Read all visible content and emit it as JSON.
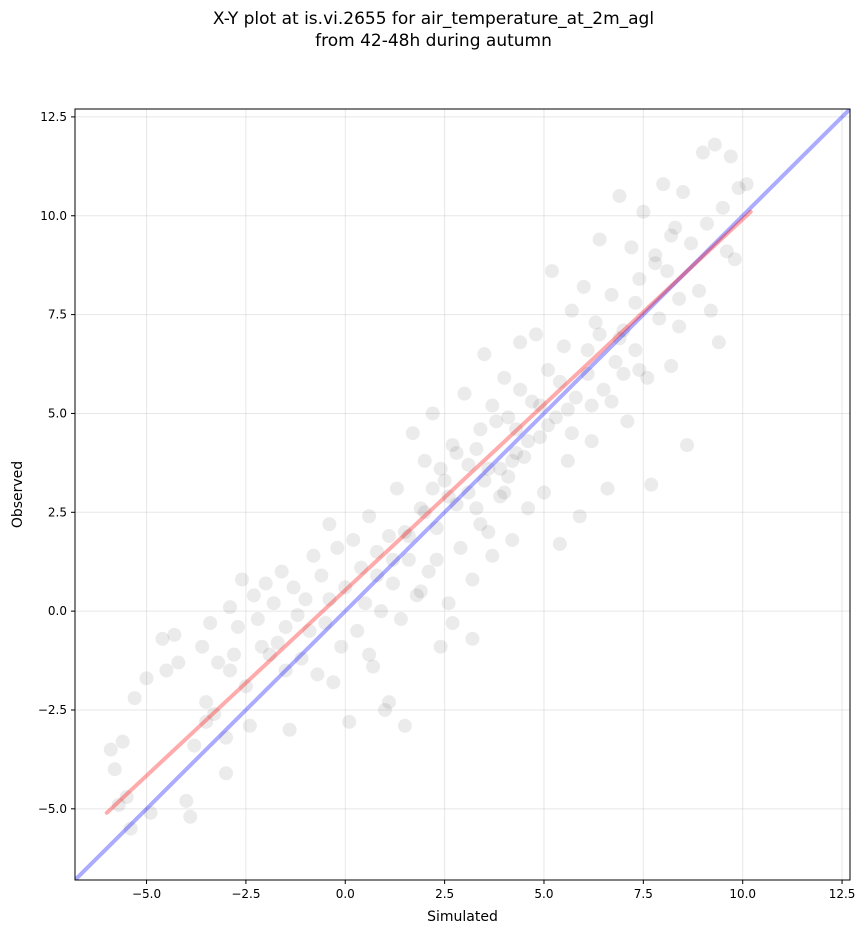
{
  "chart_data": {
    "type": "scatter",
    "title": "X-Y plot at is.vi.2655 for air_temperature_at_2m_agl",
    "subtitle": "from 42-48h during autumn",
    "xlabel": "Simulated",
    "ylabel": "Observed",
    "xlim": [
      -6.8,
      12.7
    ],
    "ylim": [
      -6.8,
      12.7
    ],
    "x_ticks": [
      -5.0,
      -2.5,
      0.0,
      2.5,
      5.0,
      7.5,
      10.0,
      12.5
    ],
    "y_ticks": [
      -5.0,
      -2.5,
      0.0,
      2.5,
      5.0,
      7.5,
      10.0,
      12.5
    ],
    "x_tick_labels": [
      "−5.0",
      "−2.5",
      "0.0",
      "2.5",
      "5.0",
      "7.5",
      "10.0",
      "12.5"
    ],
    "y_tick_labels": [
      "−5.0",
      "−2.5",
      "0.0",
      "2.5",
      "5.0",
      "7.5",
      "10.0",
      "12.5"
    ],
    "grid": true,
    "point_color": "#000000",
    "identity_line": {
      "color": "#0000ff",
      "from": [
        -6.8,
        -6.8
      ],
      "to": [
        12.7,
        12.7
      ]
    },
    "regression_line": {
      "color": "#ff0000",
      "from": [
        -6.0,
        -5.1
      ],
      "to": [
        10.2,
        10.1
      ]
    },
    "points": [
      [
        -5.9,
        -3.5
      ],
      [
        -5.8,
        -4.0
      ],
      [
        -5.7,
        -4.9
      ],
      [
        -5.6,
        -3.3
      ],
      [
        -5.5,
        -4.7
      ],
      [
        -5.4,
        -5.5
      ],
      [
        -5.3,
        -2.2
      ],
      [
        -5.0,
        -1.7
      ],
      [
        -4.9,
        -5.1
      ],
      [
        -4.6,
        -0.7
      ],
      [
        -4.5,
        -1.5
      ],
      [
        -4.3,
        -0.6
      ],
      [
        -4.2,
        -1.3
      ],
      [
        -4.0,
        -4.8
      ],
      [
        -3.9,
        -5.2
      ],
      [
        -3.8,
        -3.4
      ],
      [
        -3.6,
        -0.9
      ],
      [
        -3.5,
        -2.8
      ],
      [
        -3.4,
        -0.3
      ],
      [
        -3.3,
        -2.6
      ],
      [
        -3.2,
        -1.3
      ],
      [
        -3.0,
        -4.1
      ],
      [
        -3.0,
        -3.2
      ],
      [
        -2.9,
        0.1
      ],
      [
        -2.8,
        -1.1
      ],
      [
        -2.7,
        -0.4
      ],
      [
        -2.6,
        0.8
      ],
      [
        -2.5,
        -1.9
      ],
      [
        -2.4,
        -2.9
      ],
      [
        -2.3,
        0.4
      ],
      [
        -2.2,
        -0.2
      ],
      [
        -2.0,
        0.7
      ],
      [
        -1.9,
        -1.1
      ],
      [
        -1.8,
        0.2
      ],
      [
        -1.7,
        -0.8
      ],
      [
        -1.6,
        1.0
      ],
      [
        -1.5,
        -1.5
      ],
      [
        -1.4,
        -3.0
      ],
      [
        -1.3,
        0.6
      ],
      [
        -1.2,
        -0.1
      ],
      [
        -1.1,
        -1.2
      ],
      [
        -1.0,
        0.3
      ],
      [
        -0.9,
        -0.5
      ],
      [
        -0.8,
        1.4
      ],
      [
        -0.7,
        -1.6
      ],
      [
        -0.6,
        0.9
      ],
      [
        -0.5,
        -0.3
      ],
      [
        -0.4,
        2.2
      ],
      [
        -0.3,
        -1.8
      ],
      [
        -0.2,
        1.6
      ],
      [
        -0.1,
        -0.9
      ],
      [
        0.0,
        0.6
      ],
      [
        0.1,
        -2.8
      ],
      [
        0.2,
        1.8
      ],
      [
        0.3,
        -0.5
      ],
      [
        0.4,
        1.1
      ],
      [
        0.5,
        0.2
      ],
      [
        0.6,
        2.4
      ],
      [
        0.7,
        -1.4
      ],
      [
        0.8,
        1.5
      ],
      [
        0.9,
        0.0
      ],
      [
        1.0,
        -2.5
      ],
      [
        1.1,
        1.9
      ],
      [
        1.2,
        0.7
      ],
      [
        1.3,
        3.1
      ],
      [
        1.4,
        -0.2
      ],
      [
        1.5,
        2.0
      ],
      [
        1.6,
        1.3
      ],
      [
        1.7,
        4.5
      ],
      [
        1.8,
        0.4
      ],
      [
        1.9,
        2.6
      ],
      [
        2.0,
        3.8
      ],
      [
        2.1,
        1.0
      ],
      [
        2.2,
        5.0
      ],
      [
        2.3,
        2.1
      ],
      [
        2.4,
        -0.9
      ],
      [
        2.5,
        3.3
      ],
      [
        2.6,
        0.2
      ],
      [
        2.7,
        4.2
      ],
      [
        2.8,
        2.7
      ],
      [
        2.9,
        1.6
      ],
      [
        3.0,
        5.5
      ],
      [
        3.1,
        3.0
      ],
      [
        3.2,
        -0.7
      ],
      [
        3.3,
        4.1
      ],
      [
        3.4,
        2.2
      ],
      [
        3.5,
        6.5
      ],
      [
        3.6,
        3.6
      ],
      [
        3.7,
        1.4
      ],
      [
        3.8,
        4.8
      ],
      [
        3.9,
        2.9
      ],
      [
        4.0,
        5.9
      ],
      [
        4.1,
        3.4
      ],
      [
        4.2,
        1.8
      ],
      [
        4.3,
        4.6
      ],
      [
        4.4,
        6.8
      ],
      [
        4.5,
        3.9
      ],
      [
        4.6,
        2.6
      ],
      [
        4.7,
        5.3
      ],
      [
        4.8,
        7.0
      ],
      [
        4.9,
        4.4
      ],
      [
        5.0,
        3.0
      ],
      [
        5.1,
        6.1
      ],
      [
        5.2,
        8.6
      ],
      [
        5.3,
        4.9
      ],
      [
        5.4,
        1.7
      ],
      [
        5.5,
        6.7
      ],
      [
        5.6,
        3.8
      ],
      [
        5.7,
        7.6
      ],
      [
        5.8,
        5.4
      ],
      [
        5.9,
        2.4
      ],
      [
        6.0,
        8.2
      ],
      [
        6.1,
        6.0
      ],
      [
        6.2,
        4.3
      ],
      [
        6.3,
        7.3
      ],
      [
        6.4,
        9.4
      ],
      [
        6.5,
        5.6
      ],
      [
        6.6,
        3.1
      ],
      [
        6.7,
        8.0
      ],
      [
        6.8,
        6.3
      ],
      [
        6.9,
        10.5
      ],
      [
        7.0,
        7.1
      ],
      [
        7.1,
        4.8
      ],
      [
        7.2,
        9.2
      ],
      [
        7.3,
        6.6
      ],
      [
        7.4,
        8.4
      ],
      [
        7.5,
        10.1
      ],
      [
        7.6,
        5.9
      ],
      [
        7.7,
        3.2
      ],
      [
        7.8,
        9.0
      ],
      [
        7.9,
        7.4
      ],
      [
        8.0,
        10.8
      ],
      [
        8.1,
        8.6
      ],
      [
        8.2,
        6.2
      ],
      [
        8.3,
        9.7
      ],
      [
        8.4,
        7.9
      ],
      [
        8.5,
        10.6
      ],
      [
        8.6,
        4.2
      ],
      [
        8.7,
        9.3
      ],
      [
        8.9,
        8.1
      ],
      [
        9.0,
        11.6
      ],
      [
        9.1,
        9.8
      ],
      [
        9.2,
        7.6
      ],
      [
        9.3,
        11.8
      ],
      [
        9.4,
        6.8
      ],
      [
        9.5,
        10.2
      ],
      [
        9.6,
        9.1
      ],
      [
        9.7,
        11.5
      ],
      [
        9.8,
        8.9
      ],
      [
        9.9,
        10.7
      ],
      [
        10.1,
        10.8
      ],
      [
        0.6,
        -1.1
      ],
      [
        1.1,
        -2.3
      ],
      [
        1.5,
        -2.9
      ],
      [
        1.9,
        0.5
      ],
      [
        2.3,
        1.3
      ],
      [
        2.7,
        -0.3
      ],
      [
        3.2,
        0.8
      ],
      [
        3.6,
        2.0
      ],
      [
        4.0,
        3.0
      ],
      [
        3.4,
        4.6
      ],
      [
        3.7,
        5.2
      ],
      [
        4.1,
        4.9
      ],
      [
        4.4,
        5.6
      ],
      [
        3.9,
        3.6
      ],
      [
        4.2,
        3.8
      ],
      [
        4.6,
        4.3
      ],
      [
        5.1,
        4.7
      ],
      [
        3.5,
        3.3
      ],
      [
        4.3,
        4.0
      ],
      [
        2.4,
        3.6
      ],
      [
        2.8,
        4.0
      ],
      [
        3.1,
        3.7
      ],
      [
        2.6,
        2.9
      ],
      [
        3.3,
        2.6
      ],
      [
        4.9,
        5.2
      ],
      [
        5.4,
        5.8
      ],
      [
        5.6,
        5.1
      ],
      [
        6.1,
        6.6
      ],
      [
        6.4,
        7.0
      ],
      [
        2.0,
        2.5
      ],
      [
        2.2,
        3.1
      ],
      [
        1.6,
        1.9
      ],
      [
        1.2,
        1.3
      ],
      [
        0.8,
        0.9
      ],
      [
        -0.4,
        0.3
      ],
      [
        -1.5,
        -0.4
      ],
      [
        -2.1,
        -0.9
      ],
      [
        -2.9,
        -1.5
      ],
      [
        -3.5,
        -2.3
      ],
      [
        6.7,
        5.3
      ],
      [
        7.0,
        6.0
      ],
      [
        7.3,
        7.8
      ],
      [
        7.8,
        8.8
      ],
      [
        8.2,
        9.5
      ],
      [
        5.7,
        4.5
      ],
      [
        6.2,
        5.2
      ],
      [
        6.9,
        6.9
      ],
      [
        7.4,
        6.1
      ],
      [
        8.4,
        7.2
      ]
    ]
  }
}
